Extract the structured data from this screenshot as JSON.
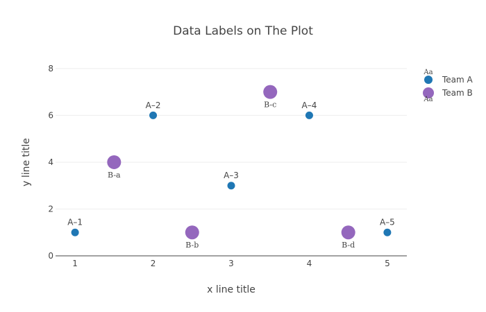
{
  "chart_data": {
    "type": "scatter",
    "title": "Data Labels on The Plot",
    "xlabel": "x line title",
    "ylabel": "y line title",
    "xlim": [
      0.75,
      5.25
    ],
    "ylim": [
      0,
      8.5
    ],
    "xticks": [
      "1",
      "2",
      "3",
      "4",
      "5"
    ],
    "yticks": [
      "0",
      "2",
      "4",
      "6",
      "8"
    ],
    "grid": true,
    "legend_position": "top-right",
    "legend_aa": "Aa",
    "series": [
      {
        "name": "Team A",
        "color": "#1f77b4",
        "label_position": "top",
        "points": [
          {
            "x": 1,
            "y": 1,
            "label": "A–1"
          },
          {
            "x": 2,
            "y": 6,
            "label": "A–2"
          },
          {
            "x": 3,
            "y": 3,
            "label": "A–3"
          },
          {
            "x": 4,
            "y": 6,
            "label": "A–4"
          },
          {
            "x": 5,
            "y": 1,
            "label": "A–5"
          }
        ]
      },
      {
        "name": "Team B",
        "color": "#9467bd",
        "label_position": "bottom",
        "points": [
          {
            "x": 1.5,
            "y": 4,
            "label": "B-a"
          },
          {
            "x": 2.5,
            "y": 1,
            "label": "B-b"
          },
          {
            "x": 3.5,
            "y": 7,
            "label": "B-c"
          },
          {
            "x": 4.5,
            "y": 1,
            "label": "B-d"
          }
        ]
      }
    ]
  }
}
